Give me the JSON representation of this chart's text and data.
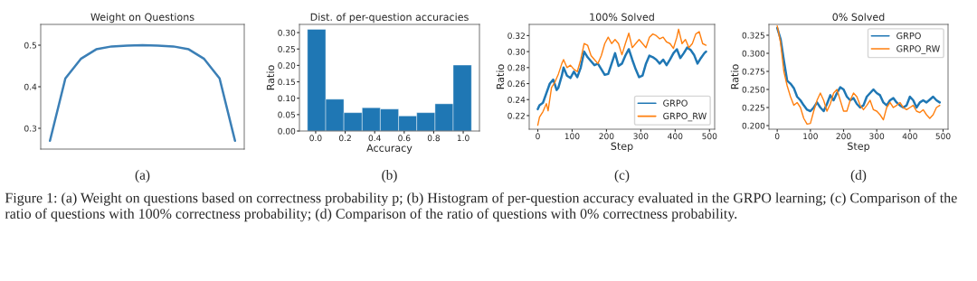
{
  "chart_data": [
    {
      "type": "line",
      "title": "Weight on Questions",
      "categories": [
        null,
        null,
        null,
        null,
        null,
        null,
        null,
        null,
        null,
        null,
        null,
        null,
        null
      ],
      "series": [
        {
          "color": "#3b7fb6",
          "values": [
            0.27,
            0.42,
            0.467,
            0.49,
            0.497,
            0.499,
            0.5,
            0.499,
            0.497,
            0.49,
            0.467,
            0.42,
            0.27
          ]
        }
      ],
      "ylim": [
        0.25,
        0.55
      ],
      "yticks": [
        0.3,
        0.4,
        0.5
      ],
      "tick_labels": "y",
      "annotations": [
        "(a)"
      ]
    },
    {
      "type": "histogram",
      "title": "Dist. of per-question accuracies",
      "xlabel": "Accuracy",
      "ylabel": "Ratio",
      "color": "#1f77b4",
      "bins": [
        -0.056,
        0.068,
        0.191,
        0.315,
        0.438,
        0.562,
        0.685,
        0.809,
        0.932,
        1.056
      ],
      "values": [
        0.31,
        0.097,
        0.056,
        0.071,
        0.067,
        0.046,
        0.056,
        0.083,
        0.201
      ],
      "xlim": [
        -0.11,
        1.11
      ],
      "xticks": [
        {
          "value": 0,
          "label": "0.0"
        },
        0.2,
        0.4,
        0.6,
        0.8,
        {
          "value": 1,
          "label": "1.0"
        }
      ],
      "ylim": [
        0,
        0.325
      ],
      "yticks": [
        {
          "value": 0,
          "label": "0.00"
        },
        0.05,
        {
          "value": 0.1,
          "label": "0.10"
        },
        0.15,
        {
          "value": 0.2,
          "label": "0.20"
        },
        0.25,
        {
          "value": 0.3,
          "label": "0.30"
        }
      ],
      "annotations": [
        "(b)"
      ]
    },
    {
      "type": "line",
      "title": "100% Solved",
      "xlabel": "Step",
      "ylabel": "Ratio",
      "legend": "bottom right",
      "series": [
        {
          "name": "GRPO",
          "color": "#1f77b4",
          "x": [
            0,
            5,
            15,
            25,
            35,
            45,
            55,
            60,
            70,
            75,
            85,
            95,
            105,
            115,
            125,
            135,
            145,
            155,
            165,
            175,
            185,
            195,
            205,
            215,
            225,
            235,
            245,
            255,
            265,
            275,
            285,
            295,
            305,
            315,
            325,
            335,
            345,
            355,
            365,
            375,
            385,
            395,
            405,
            415,
            425,
            435,
            445,
            455,
            465,
            475,
            485,
            490
          ],
          "values": [
            0.228,
            0.233,
            0.236,
            0.248,
            0.26,
            0.265,
            0.252,
            0.255,
            0.27,
            0.28,
            0.27,
            0.267,
            0.275,
            0.268,
            0.28,
            0.3,
            0.293,
            0.288,
            0.283,
            0.285,
            0.278,
            0.271,
            0.272,
            0.285,
            0.298,
            0.282,
            0.285,
            0.295,
            0.303,
            0.29,
            0.278,
            0.268,
            0.27,
            0.285,
            0.295,
            0.293,
            0.29,
            0.285,
            0.29,
            0.283,
            0.29,
            0.298,
            0.303,
            0.292,
            0.298,
            0.305,
            0.302,
            0.296,
            0.285,
            0.292,
            0.298,
            0.3
          ]
        },
        {
          "name": "GRPO_RW",
          "color": "#ff7f0e",
          "x": [
            0,
            5,
            15,
            25,
            30,
            40,
            50,
            60,
            70,
            75,
            85,
            95,
            105,
            115,
            125,
            135,
            145,
            155,
            165,
            175,
            185,
            195,
            205,
            215,
            225,
            235,
            245,
            255,
            265,
            275,
            285,
            295,
            305,
            315,
            325,
            335,
            345,
            355,
            365,
            375,
            385,
            395,
            405,
            410,
            420,
            430,
            440,
            450,
            460,
            470,
            480,
            490
          ],
          "values": [
            0.208,
            0.218,
            0.225,
            0.235,
            0.226,
            0.255,
            0.262,
            0.272,
            0.285,
            0.29,
            0.28,
            0.283,
            0.278,
            0.275,
            0.29,
            0.31,
            0.308,
            0.295,
            0.29,
            0.285,
            0.295,
            0.31,
            0.318,
            0.31,
            0.315,
            0.31,
            0.296,
            0.31,
            0.323,
            0.305,
            0.31,
            0.315,
            0.31,
            0.305,
            0.318,
            0.322,
            0.32,
            0.316,
            0.318,
            0.312,
            0.31,
            0.304,
            0.318,
            0.328,
            0.31,
            0.315,
            0.305,
            0.31,
            0.322,
            0.325,
            0.31,
            0.308
          ]
        }
      ],
      "xlim": [
        -25,
        515
      ],
      "xticks": [
        0,
        100,
        200,
        300,
        400,
        500
      ],
      "ylim": [
        0.203,
        0.334
      ],
      "yticks": [
        0.22,
        0.24,
        0.26,
        0.28,
        {
          "value": 0.3,
          "label": "0.30"
        },
        0.32
      ],
      "annotations": [
        "(c)"
      ]
    },
    {
      "type": "line",
      "title": "0% Solved",
      "xlabel": "Step",
      "ylabel": "Ratio",
      "legend": "top right",
      "series": [
        {
          "name": "GRPO",
          "color": "#1f77b4",
          "x": [
            0,
            10,
            20,
            30,
            40,
            50,
            60,
            70,
            80,
            90,
            100,
            110,
            120,
            130,
            140,
            150,
            160,
            170,
            180,
            190,
            200,
            210,
            220,
            230,
            240,
            250,
            260,
            270,
            280,
            290,
            300,
            310,
            320,
            330,
            340,
            350,
            360,
            370,
            380,
            390,
            400,
            410,
            420,
            430,
            440,
            450,
            460,
            470,
            480,
            490
          ],
          "values": [
            0.335,
            0.32,
            0.29,
            0.262,
            0.258,
            0.252,
            0.24,
            0.235,
            0.228,
            0.222,
            0.22,
            0.225,
            0.232,
            0.225,
            0.22,
            0.23,
            0.242,
            0.235,
            0.245,
            0.253,
            0.25,
            0.24,
            0.235,
            0.238,
            0.23,
            0.225,
            0.228,
            0.24,
            0.245,
            0.25,
            0.245,
            0.242,
            0.232,
            0.228,
            0.235,
            0.238,
            0.232,
            0.228,
            0.225,
            0.228,
            0.24,
            0.235,
            0.225,
            0.232,
            0.235,
            0.232,
            0.236,
            0.24,
            0.235,
            0.232
          ]
        },
        {
          "name": "GRPO_RW",
          "color": "#ff7f0e",
          "x": [
            0,
            10,
            20,
            30,
            40,
            50,
            60,
            70,
            80,
            90,
            100,
            110,
            120,
            130,
            140,
            150,
            160,
            170,
            180,
            190,
            200,
            210,
            220,
            230,
            240,
            250,
            260,
            270,
            280,
            290,
            300,
            310,
            320,
            330,
            340,
            350,
            360,
            370,
            380,
            390,
            400,
            410,
            420,
            430,
            440,
            450,
            460,
            470,
            480,
            490
          ],
          "values": [
            0.338,
            0.315,
            0.275,
            0.255,
            0.24,
            0.228,
            0.232,
            0.225,
            0.21,
            0.202,
            0.203,
            0.22,
            0.235,
            0.245,
            0.235,
            0.22,
            0.23,
            0.245,
            0.25,
            0.235,
            0.22,
            0.22,
            0.235,
            0.245,
            0.24,
            0.228,
            0.222,
            0.228,
            0.235,
            0.222,
            0.22,
            0.215,
            0.208,
            0.225,
            0.232,
            0.225,
            0.228,
            0.232,
            0.225,
            0.222,
            0.225,
            0.228,
            0.22,
            0.218,
            0.222,
            0.215,
            0.21,
            0.215,
            0.225,
            0.228
          ]
        }
      ],
      "xlim": [
        -25,
        515
      ],
      "xticks": [
        0,
        100,
        200,
        300,
        400,
        500
      ],
      "ylim": [
        0.195,
        0.34
      ],
      "yticks": [
        {
          "value": 0.2,
          "label": "0.200"
        },
        0.225,
        {
          "value": 0.25,
          "label": "0.250"
        },
        0.275,
        {
          "value": 0.3,
          "label": "0.300"
        },
        0.325
      ],
      "annotations": [
        "(d)",
        "Figure 1: (a) Weight on questions based on correctness probability p; (b) Histogram of per-question accuracy evaluated in the GRPO learning; (c) Comparison of the ratio of questions with 100% correctness probability; (d) Comparison of the ratio of questions with 0% correctness probability."
      ]
    }
  ]
}
